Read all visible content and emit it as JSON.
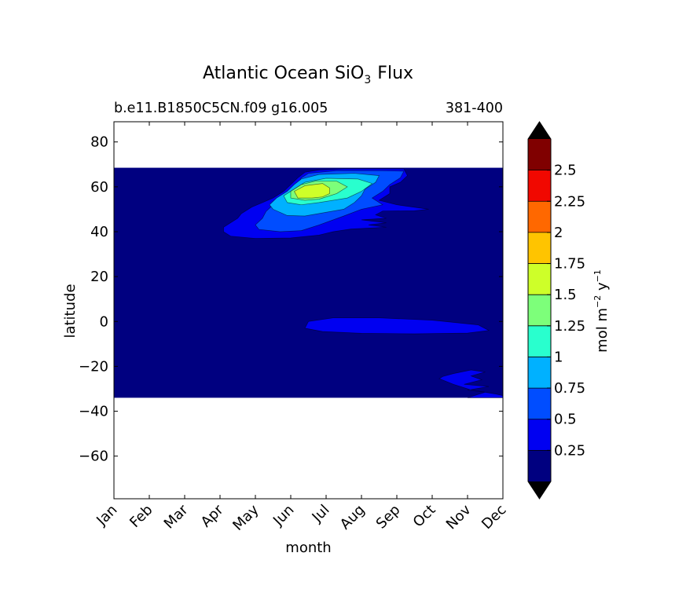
{
  "chart_data": {
    "type": "heatmap",
    "subtype": "filled-contour",
    "title": "Atlantic Ocean SiO",
    "title_subscript": "3",
    "title_suffix": "Flux",
    "subtitle_left": "b.e11.B1850C5CN.f09 g16.005",
    "subtitle_right": "381-400",
    "xlabel": "month",
    "ylabel": "latitude",
    "x_ticks": [
      "Jan",
      "Feb",
      "Mar",
      "Apr",
      "May",
      "Jun",
      "Jul",
      "Aug",
      "Sep",
      "Oct",
      "Nov",
      "Dec"
    ],
    "xlim": [
      1,
      12
    ],
    "y_ticks": [
      80,
      60,
      40,
      20,
      0,
      -20,
      -40,
      -60
    ],
    "y_tick_labels": [
      "80",
      "60",
      "40",
      "20",
      "0",
      "−20",
      "−40",
      "−60"
    ],
    "ylim": [
      -79,
      89
    ],
    "data_lat_range": [
      -34,
      68.5
    ],
    "grid": false,
    "colorbar": {
      "label_main": "mol m",
      "label_exp1": "−2",
      "label_mid": " y",
      "label_exp2": "−1",
      "levels": [
        0,
        0.25,
        0.5,
        0.75,
        1,
        1.25,
        1.5,
        1.75,
        2,
        2.25,
        2.5,
        2.75
      ],
      "tick_values": [
        0.25,
        0.5,
        0.75,
        1,
        1.25,
        1.5,
        1.75,
        2,
        2.25,
        2.5
      ],
      "tick_labels": [
        "0.25",
        "0.5",
        "0.75",
        "1",
        "1.25",
        "1.5",
        "1.75",
        "2",
        "2.25",
        "2.5"
      ],
      "colors": [
        "#000080",
        "#0000f1",
        "#004dff",
        "#00b1ff",
        "#29ffce",
        "#7dff7a",
        "#ceff29",
        "#ffc400",
        "#ff6800",
        "#f10800",
        "#800000"
      ],
      "extend": "both",
      "extend_colors": [
        "#000000",
        "#000000"
      ]
    },
    "regions": [
      {
        "level": 0.25,
        "points": [
          [
            4.1,
            40
          ],
          [
            4.1,
            42
          ],
          [
            4.3,
            44
          ],
          [
            4.5,
            46
          ],
          [
            4.6,
            48
          ],
          [
            4.9,
            51
          ],
          [
            5.2,
            53
          ],
          [
            5.5,
            55
          ],
          [
            5.8,
            58
          ],
          [
            6.0,
            61
          ],
          [
            6.2,
            64
          ],
          [
            6.4,
            66.5
          ],
          [
            6.8,
            67.5
          ],
          [
            7.5,
            68
          ],
          [
            8.5,
            68
          ],
          [
            9.2,
            68
          ],
          [
            9.3,
            65
          ],
          [
            9.1,
            62
          ],
          [
            8.8,
            60
          ],
          [
            8.8,
            57
          ],
          [
            8.5,
            54
          ],
          [
            9.0,
            52
          ],
          [
            9.9,
            50
          ],
          [
            9.5,
            49.3
          ],
          [
            8.6,
            49.2
          ],
          [
            8.4,
            47.5
          ],
          [
            8.7,
            46
          ],
          [
            8.0,
            45.3
          ],
          [
            8.7,
            44
          ],
          [
            8.2,
            43
          ],
          [
            8.7,
            42
          ],
          [
            7.7,
            41.2
          ],
          [
            7.2,
            40
          ],
          [
            6.8,
            38.5
          ],
          [
            6.0,
            37.2
          ],
          [
            5.0,
            37
          ],
          [
            4.3,
            38
          ]
        ]
      },
      {
        "level": 0.25,
        "points": [
          [
            6.4,
            -3
          ],
          [
            6.9,
            -4.5
          ],
          [
            8,
            -5.3
          ],
          [
            9.5,
            -5.5
          ],
          [
            11,
            -5.2
          ],
          [
            11.6,
            -4
          ],
          [
            11.3,
            -1.5
          ],
          [
            10,
            0.6
          ],
          [
            8.5,
            1.6
          ],
          [
            7.2,
            1.6
          ],
          [
            6.5,
            0
          ]
        ]
      },
      {
        "level": 0.25,
        "points": [
          [
            10.2,
            -25.5
          ],
          [
            10.6,
            -28
          ],
          [
            11.1,
            -30.5
          ],
          [
            11.8,
            -32.3
          ],
          [
            12.0,
            -33
          ],
          [
            12,
            -34
          ],
          [
            11,
            -34
          ],
          [
            11.5,
            -31.5
          ],
          [
            11.0,
            -30.6
          ],
          [
            11.6,
            -29
          ],
          [
            10.9,
            -28
          ],
          [
            11.4,
            -26
          ],
          [
            11.1,
            -24.3
          ],
          [
            11.5,
            -22.5
          ],
          [
            11.1,
            -21.6
          ],
          [
            10.6,
            -23.2
          ],
          [
            10.3,
            -24.5
          ]
        ]
      },
      {
        "level": 0.5,
        "points": [
          [
            5.1,
            41
          ],
          [
            5.0,
            43
          ],
          [
            5.2,
            46
          ],
          [
            5.3,
            49
          ],
          [
            5.5,
            52
          ],
          [
            5.8,
            55
          ],
          [
            6.0,
            58
          ],
          [
            6.2,
            61
          ],
          [
            6.3,
            64
          ],
          [
            6.5,
            66
          ],
          [
            7.3,
            67.2
          ],
          [
            8.5,
            67.2
          ],
          [
            9.2,
            67
          ],
          [
            9.1,
            64
          ],
          [
            8.8,
            61
          ],
          [
            8.6,
            58
          ],
          [
            8.3,
            55
          ],
          [
            8.6,
            52
          ],
          [
            8.0,
            50
          ],
          [
            7.5,
            47
          ],
          [
            6.8,
            43
          ],
          [
            6.3,
            40.5
          ],
          [
            5.7,
            40
          ]
        ]
      },
      {
        "level": 0.75,
        "points": [
          [
            5.5,
            50
          ],
          [
            5.4,
            52
          ],
          [
            5.6,
            55
          ],
          [
            5.9,
            58
          ],
          [
            6.1,
            61
          ],
          [
            6.3,
            63.5
          ],
          [
            6.8,
            65.5
          ],
          [
            7.8,
            66
          ],
          [
            8.5,
            65
          ],
          [
            8.4,
            62
          ],
          [
            8.1,
            59
          ],
          [
            8.0,
            56
          ],
          [
            7.8,
            53
          ],
          [
            7.5,
            50
          ],
          [
            6.4,
            47
          ],
          [
            5.9,
            47.2
          ]
        ]
      },
      {
        "level": 1.0,
        "points": [
          [
            5.9,
            53
          ],
          [
            5.8,
            56
          ],
          [
            6.1,
            59
          ],
          [
            6.4,
            62
          ],
          [
            7.0,
            63.8
          ],
          [
            7.9,
            63.5
          ],
          [
            8.3,
            61.5
          ],
          [
            8.0,
            58
          ],
          [
            7.6,
            55
          ],
          [
            6.8,
            53
          ],
          [
            6.3,
            52
          ]
        ]
      },
      {
        "level": 1.25,
        "points": [
          [
            6.0,
            55
          ],
          [
            6.0,
            58
          ],
          [
            6.3,
            61
          ],
          [
            6.7,
            62.5
          ],
          [
            7.3,
            62.5
          ],
          [
            7.6,
            60
          ],
          [
            7.3,
            57
          ],
          [
            6.8,
            54.5
          ],
          [
            6.4,
            54
          ]
        ]
      },
      {
        "level": 1.5,
        "points": [
          [
            6.2,
            55
          ],
          [
            6.1,
            58
          ],
          [
            6.4,
            60.5
          ],
          [
            6.9,
            61.5
          ],
          [
            7.1,
            59.5
          ],
          [
            7.1,
            57
          ],
          [
            6.9,
            55.5
          ],
          [
            6.6,
            55
          ]
        ]
      }
    ]
  }
}
